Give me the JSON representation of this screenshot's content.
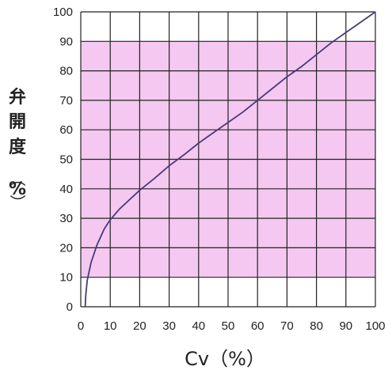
{
  "chart_data": {
    "type": "line",
    "title": "",
    "xlabel": "Cv（%）",
    "ylabel_chars": [
      "弁",
      "開",
      "度",
      "（",
      "%",
      "）"
    ],
    "xlim": [
      0,
      100
    ],
    "ylim": [
      0,
      100
    ],
    "x_ticks": [
      0,
      10,
      20,
      30,
      40,
      50,
      60,
      70,
      80,
      90,
      100
    ],
    "y_ticks": [
      0,
      10,
      20,
      30,
      40,
      50,
      60,
      70,
      80,
      90,
      100
    ],
    "grid": true,
    "shaded_band": {
      "y_from": 10,
      "y_to": 90,
      "color": "#f4c8f0"
    },
    "series": [
      {
        "color": "#4a3a78",
        "x": [
          1.5,
          1.7,
          2.2,
          3.5,
          5.5,
          8,
          10,
          13,
          16,
          20,
          25,
          30,
          35,
          40,
          45,
          50,
          55,
          60,
          65,
          70,
          75,
          80,
          85,
          90,
          95,
          100
        ],
        "y": [
          0,
          4,
          9,
          15,
          21,
          26.5,
          29.5,
          33,
          35.8,
          39.5,
          43.5,
          47.8,
          51.5,
          55.5,
          59,
          62.5,
          66,
          70,
          74,
          78,
          81.5,
          85.5,
          89.5,
          93,
          96.5,
          100
        ]
      }
    ]
  },
  "colors": {
    "grid": "#222222",
    "plot_background": "#ffffff"
  }
}
